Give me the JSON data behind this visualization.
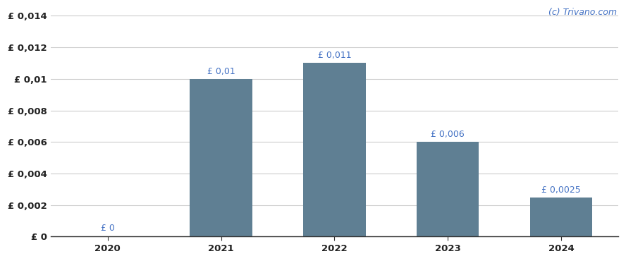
{
  "categories": [
    "2020",
    "2021",
    "2022",
    "2023",
    "2024"
  ],
  "values": [
    0.0,
    0.01,
    0.011,
    0.006,
    0.0025
  ],
  "bar_labels": [
    "£ 0",
    "£ 0,01",
    "£ 0,011",
    "£ 0,006",
    "£ 0,0025"
  ],
  "bar_color": "#5f7f93",
  "background_color": "#ffffff",
  "ylim": [
    0,
    0.0145
  ],
  "yticks": [
    0,
    0.002,
    0.004,
    0.006,
    0.008,
    0.01,
    0.012,
    0.014
  ],
  "ytick_labels": [
    "£ 0",
    "£ 0,002",
    "£ 0,004",
    "£ 0,006",
    "£ 0,008",
    "£ 0,01",
    "£ 0,012",
    "£ 0,014"
  ],
  "watermark": "(c) Trivano.com",
  "watermark_color": "#4472c4",
  "grid_color": "#cccccc",
  "bar_label_color": "#4472c4",
  "bar_label_fontsize": 9,
  "tick_label_fontsize": 9.5,
  "watermark_fontsize": 9,
  "axis_label_color": "#222222"
}
